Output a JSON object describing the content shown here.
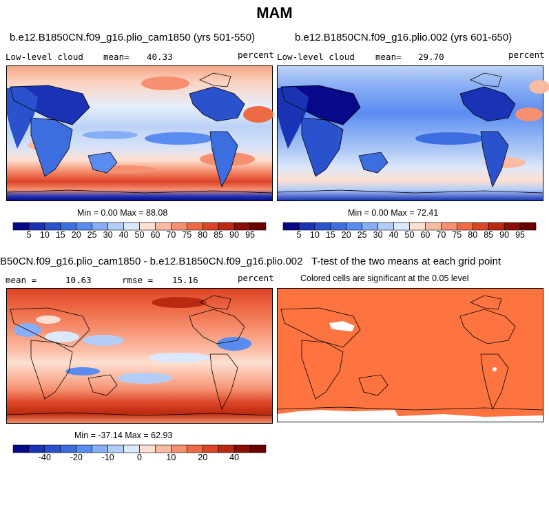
{
  "title": "MAM",
  "panels": [
    {
      "id": "top-left",
      "title": "b.e12.B1850CN.f09_g16.plio_cam1850 (yrs 501-550)",
      "variable": "Low-level cloud",
      "stat_label": "mean=",
      "stat_value": "40.33",
      "units": "percent",
      "minmax": "Min =    0.00 Max =  88.08"
    },
    {
      "id": "top-right",
      "title": "b.e12.B1850CN.f09_g16.plio.002 (yrs 601-650)",
      "variable": "Low-level cloud",
      "stat_label": "mean=",
      "stat_value": "29.70",
      "units": "percent",
      "minmax": "Min =    0.00 Max =  72.41"
    },
    {
      "id": "bottom-left",
      "title": "B50CN.f09_g16.plio_cam1850 - b.e12.B1850CN.f09_g16.plio.002",
      "mean_label": "mean =",
      "mean_value": "10.63",
      "rmse_label": "rmse =",
      "rmse_value": "15.16",
      "units": "percent",
      "minmax": "Min = -37.14 Max =  62.93"
    },
    {
      "id": "bottom-right",
      "title": "T-test of the two means at each grid point",
      "subtitle": "Colored cells are significant at the 0.05 level"
    }
  ],
  "colorbars": {
    "cloud": {
      "labels": [
        "5",
        "10",
        "15",
        "20",
        "25",
        "30",
        "40",
        "50",
        "60",
        "70",
        "75",
        "80",
        "85",
        "90",
        "95"
      ],
      "colors": [
        "#08088a",
        "#1a33b5",
        "#2952cc",
        "#3d6ee0",
        "#5a8cf0",
        "#88aef5",
        "#b4cdf7",
        "#dce8fb",
        "#fde0d2",
        "#fbbba3",
        "#f69070",
        "#ee6a45",
        "#dd4426",
        "#bb2a10",
        "#8b0d04",
        "#6b0000"
      ]
    },
    "diff": {
      "labels": [
        "-40",
        "-20",
        "-10",
        "0",
        "10",
        "20",
        "40"
      ],
      "label_edges": [
        2,
        4,
        6,
        8,
        10,
        12,
        14
      ],
      "colors": [
        "#08088a",
        "#1a33b5",
        "#2952cc",
        "#3d6ee0",
        "#5a8cf0",
        "#88aef5",
        "#b4cdf7",
        "#dce8fb",
        "#fde0d2",
        "#fbbba3",
        "#f69070",
        "#ee6a45",
        "#dd4426",
        "#bb2a10",
        "#8b0d04",
        "#6b0000"
      ]
    }
  },
  "ttest_fill": "#fd7440"
}
